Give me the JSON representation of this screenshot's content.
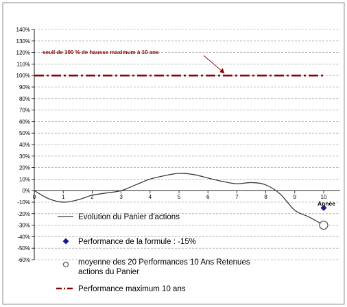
{
  "chart_data": {
    "type": "line",
    "xlabel": "Année",
    "ylabel": "",
    "xlim": [
      0,
      10
    ],
    "ylim": [
      -60,
      140
    ],
    "x_ticks": [
      "0",
      "1",
      "2",
      "3",
      "4",
      "5",
      "6",
      "7",
      "8",
      "9",
      "10"
    ],
    "y_ticks": [
      "-60%",
      "-50%",
      "-40%",
      "-30%",
      "-20%",
      "-10%",
      "0%",
      "10%",
      "20%",
      "30%",
      "40%",
      "50%",
      "60%",
      "70%",
      "80%",
      "90%",
      "100%",
      "110%",
      "120%",
      "130%",
      "140%"
    ],
    "grid": "horizontal dashed",
    "series": [
      {
        "name": "Evolution du Panier d'actions",
        "style": "solid line",
        "color": "#3a3a3a",
        "x": [
          0,
          0.5,
          1,
          1.5,
          2,
          2.5,
          3,
          3.5,
          4,
          4.5,
          5,
          5.5,
          6,
          6.5,
          7,
          7.5,
          8,
          8.5,
          9,
          9.5,
          10
        ],
        "y": [
          0,
          -7,
          -10,
          -8,
          -4,
          -2,
          0,
          5,
          10,
          13,
          15,
          14,
          11,
          8,
          6,
          7,
          5,
          -3,
          -17,
          -23,
          -30
        ]
      },
      {
        "name": "Performance de la formule : -15%",
        "style": "diamond marker",
        "color": "#1a1a8c",
        "x": [
          10
        ],
        "y": [
          -15
        ]
      },
      {
        "name": "moyenne des 20 Performances 10 Ans Retenues des actions du Panier",
        "style": "open circle marker",
        "color": "#555555",
        "x": [
          10
        ],
        "y": [
          -30
        ]
      },
      {
        "name": "Performance maximum 10 ans",
        "style": "dash-dot line",
        "color": "#8b0000",
        "x": [
          0,
          10
        ],
        "y": [
          100,
          100
        ]
      }
    ],
    "legend": {
      "placement": "bottom-left inside plot",
      "entries": [
        "Evolution du Panier d'actions",
        "Performance de la formule : -15%",
        "moyenne des 20 Performances 10 Ans Retenues des actions du Panier",
        "Performance maximum 10 ans"
      ]
    },
    "annotations": [
      {
        "text": "seuil de 100 % de hausse maximum à 10 ans",
        "color": "#8b0000",
        "arrow_to": {
          "x": 6.6,
          "y": 100
        }
      }
    ]
  }
}
